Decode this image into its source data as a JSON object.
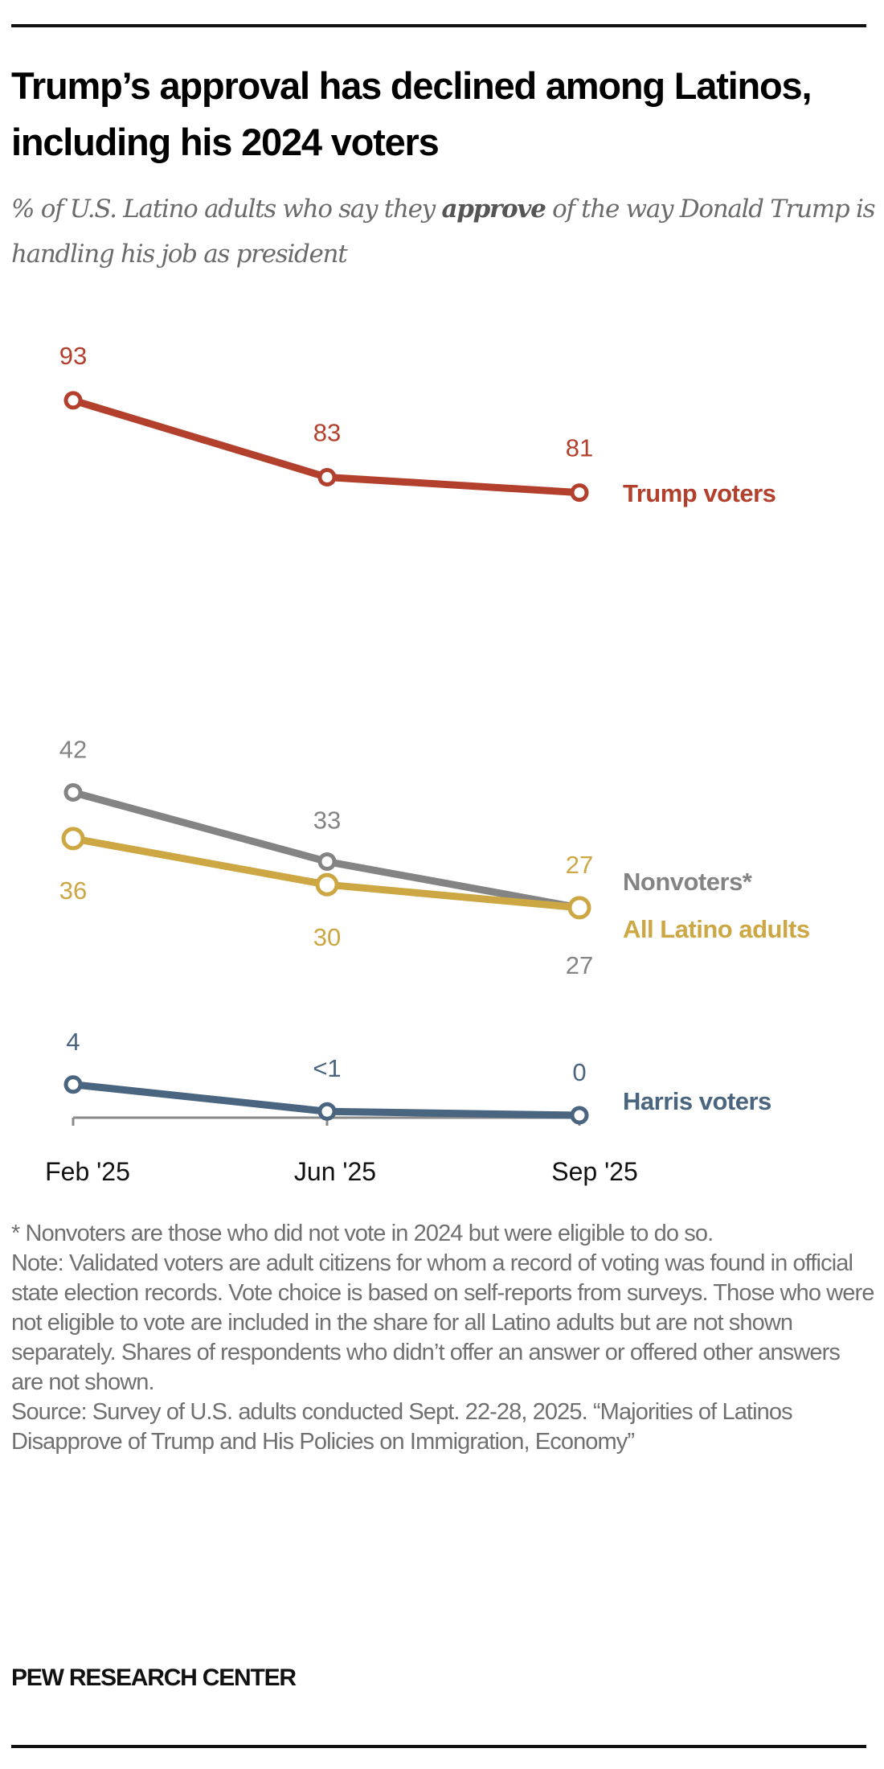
{
  "title": "Trump’s approval has declined among Latinos, including his 2024 voters",
  "subtitle": {
    "before": "% of U.S. Latino adults who say they ",
    "emphasis": "approve",
    "after": " of the way Donald Trump is handling his job as president"
  },
  "chart_data": {
    "type": "line",
    "categories": [
      "Feb '25",
      "Jun '25",
      "Sep '25"
    ],
    "ylim": [
      0,
      100
    ],
    "grid": false,
    "series": [
      {
        "name": "Trump voters",
        "values": [
          93,
          83,
          81
        ],
        "labels": [
          "93",
          "83",
          "81"
        ],
        "color": "#b3402d"
      },
      {
        "name": "Nonvoters*",
        "values": [
          42,
          33,
          27
        ],
        "labels": [
          "42",
          "33",
          "27"
        ],
        "color": "#848484"
      },
      {
        "name": "All Latino adults",
        "values": [
          36,
          30,
          27
        ],
        "labels": [
          "36",
          "30",
          "27"
        ],
        "color": "#cca743"
      },
      {
        "name": "Harris voters",
        "values": [
          4,
          0.5,
          0
        ],
        "labels": [
          "4",
          "<1",
          "0"
        ],
        "color": "#496580"
      }
    ]
  },
  "notes": [
    "* Nonvoters are those who did not vote in 2024 but were eligible to do so.",
    "Note: Validated voters are adult citizens for whom a record of voting was found in official state election records. Vote choice is based on self-reports from surveys. Those who were not eligible to vote are included in the share for all Latino adults but are not shown separately. Shares of respondents who didn’t offer an answer or offered other answers are not shown.",
    "Source: Survey of U.S. adults conducted Sept. 22-28, 2025. “Majorities of Latinos Disapprove of Trump and His Policies on Immigration, Economy”"
  ],
  "brand": "PEW RESEARCH CENTER"
}
